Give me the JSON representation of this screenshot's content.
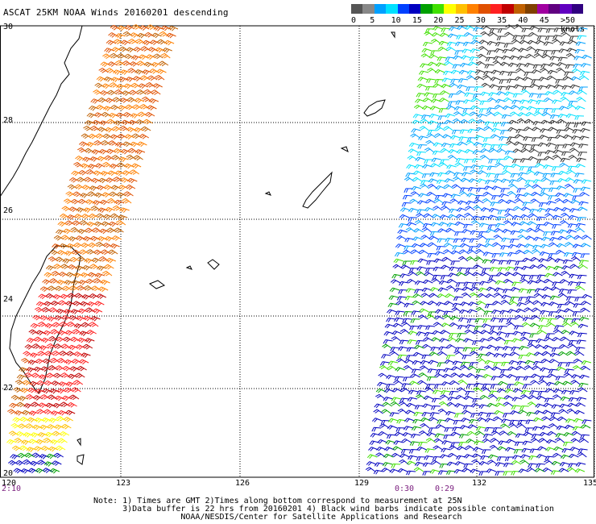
{
  "title": "ASCAT 25KM NOAA Winds 20160201 descending",
  "legend": {
    "ticks": [
      "0",
      "5",
      "10",
      "15",
      "20",
      "25",
      "30",
      "35",
      "40",
      "45",
      ">50 knots"
    ],
    "colors": [
      "#555555",
      "#888888",
      "#00a0ff",
      "#00e0ff",
      "#0040ff",
      "#0000c0",
      "#00a000",
      "#40e000",
      "#ffff00",
      "#ffc000",
      "#ff8000",
      "#e05000",
      "#ff2020",
      "#c00000",
      "#c06000",
      "#804000",
      "#a000a0",
      "#600080",
      "#6000c0",
      "#300080"
    ]
  },
  "map": {
    "lat_labels": [
      "30",
      "28",
      "26",
      "24",
      "22",
      "20"
    ],
    "lon_labels": [
      "120",
      "123",
      "126",
      "129",
      "132",
      "135"
    ]
  },
  "times": [
    "2:10",
    "0:30",
    "0:29"
  ],
  "notes": [
    "Note: 1) Times are GMT 2)Times along bottom correspond to measurement at 25N",
    "      3)Data buffer is 22 hrs from 20160201 4) Black wind barbs indicate possible contamination",
    "                  NOAA/NESDIS/Center for Satellite Applications and Research"
  ]
}
